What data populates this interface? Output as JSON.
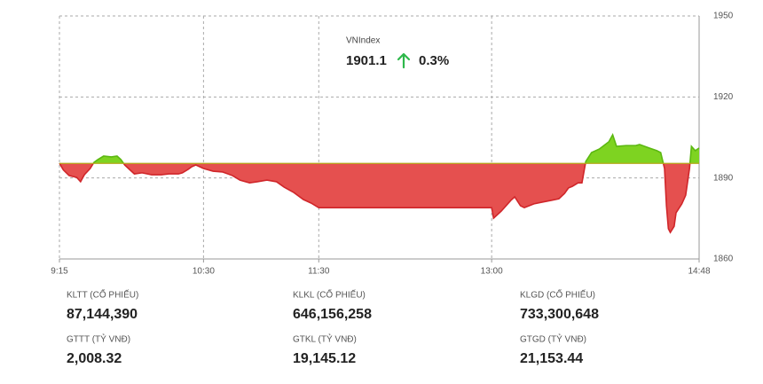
{
  "chart_data": {
    "type": "area-line",
    "title": "VNIndex",
    "price": "1901.1",
    "change": "0.3%",
    "reference": 1895.4,
    "up_color": "#7ed321",
    "down_color": "#e5504f",
    "up_line": "#5cb811",
    "down_line": "#d0262a",
    "xlim": [
      555,
      888
    ],
    "ylim": [
      1860,
      1950
    ],
    "xticks": [
      {
        "value": 555,
        "label": "9:15"
      },
      {
        "value": 630,
        "label": "10:30"
      },
      {
        "value": 690,
        "label": "11:30"
      },
      {
        "value": 780,
        "label": "13:00"
      },
      {
        "value": 888,
        "label": "14:48"
      }
    ],
    "yticks": [
      1860,
      1890,
      1920,
      1950
    ],
    "grid": true,
    "x": [
      555,
      557,
      560,
      564,
      566,
      568,
      571,
      573,
      575,
      578,
      582,
      585,
      587,
      589,
      592,
      594,
      598,
      603,
      608,
      612,
      617,
      619,
      622,
      624,
      626,
      630,
      635,
      640,
      645,
      649,
      654,
      658,
      663,
      668,
      672,
      677,
      682,
      686,
      690,
      780,
      781,
      785,
      790,
      792,
      795,
      797,
      802,
      806,
      811,
      815,
      818,
      820,
      822,
      825,
      827,
      829,
      832,
      836,
      841,
      843,
      845,
      850,
      855,
      857,
      862,
      866,
      868,
      870,
      871,
      872,
      873,
      875,
      876,
      879,
      881,
      883,
      884,
      886,
      888
    ],
    "values": [
      1895.5,
      1893.0,
      1890.9,
      1890.2,
      1888.6,
      1891.2,
      1893.5,
      1895.8,
      1896.8,
      1898.1,
      1897.8,
      1898.1,
      1896.8,
      1894.8,
      1892.8,
      1891.5,
      1891.9,
      1891.2,
      1891.2,
      1891.5,
      1891.5,
      1891.9,
      1893.2,
      1894.2,
      1894.8,
      1893.5,
      1892.5,
      1892.2,
      1890.9,
      1889.2,
      1888.2,
      1888.6,
      1889.2,
      1888.6,
      1886.6,
      1884.6,
      1882.0,
      1880.7,
      1879.0,
      1879.0,
      1875.1,
      1877.7,
      1881.7,
      1883.0,
      1879.7,
      1879.0,
      1880.4,
      1881.0,
      1881.7,
      1882.3,
      1884.3,
      1886.3,
      1886.9,
      1888.2,
      1888.2,
      1896.1,
      1899.4,
      1900.7,
      1903.4,
      1906.0,
      1901.7,
      1902.0,
      1902.0,
      1902.4,
      1901.1,
      1900.1,
      1899.4,
      1893.5,
      1879.7,
      1871.2,
      1869.8,
      1872.1,
      1877.1,
      1880.4,
      1883.6,
      1893.5,
      1901.7,
      1900.1,
      1901.1
    ]
  },
  "stats": [
    {
      "label": "KLTT (CỔ PHIẾU)",
      "value": "87,144,390"
    },
    {
      "label": "KLKL (CỔ PHIẾU)",
      "value": "646,156,258"
    },
    {
      "label": "KLGD (CỔ PHIẾU)",
      "value": "733,300,648"
    },
    {
      "label": "GTTT (TỶ VNĐ)",
      "value": "2,008.32"
    },
    {
      "label": "GTKL (TỶ VNĐ)",
      "value": "19,145.12"
    },
    {
      "label": "GTGD (TỶ VNĐ)",
      "value": "21,153.44"
    }
  ]
}
